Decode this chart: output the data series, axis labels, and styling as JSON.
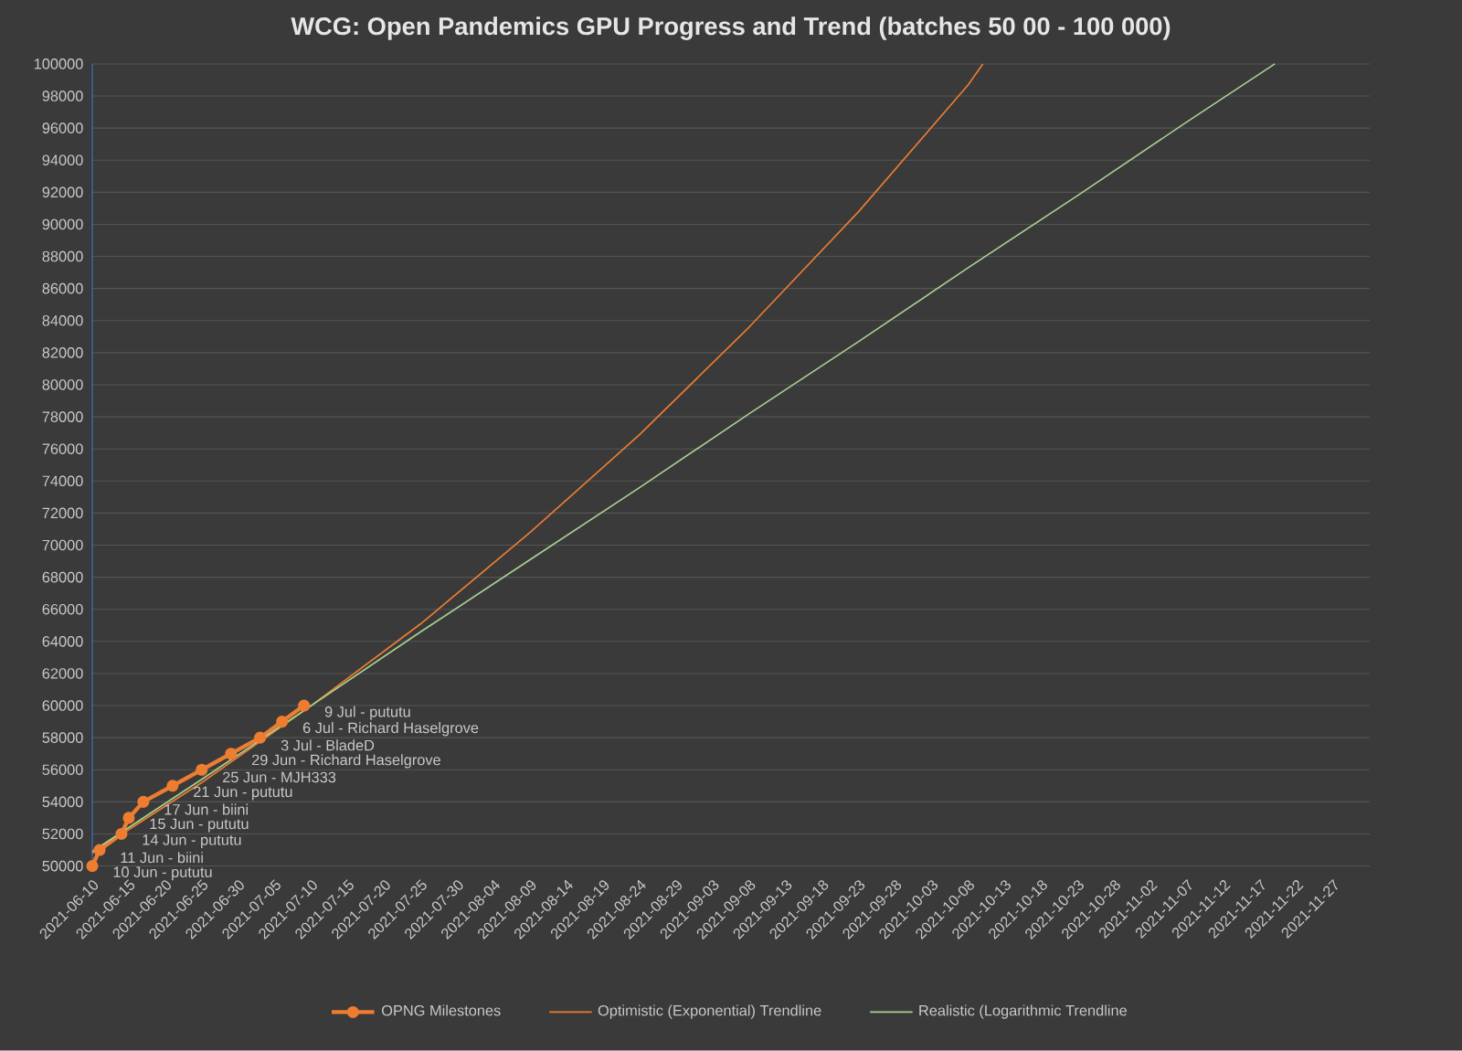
{
  "chart_data": {
    "type": "line",
    "title": "WCG: Open Pandemics GPU Progress and Trend (batches 50 00 - 100 000)",
    "xlim": [
      "2021-06-10",
      "2021-12-02"
    ],
    "xticks": [
      "2021-06-10",
      "2021-06-15",
      "2021-06-20",
      "2021-06-25",
      "2021-06-30",
      "2021-07-05",
      "2021-07-10",
      "2021-07-15",
      "2021-07-20",
      "2021-07-25",
      "2021-07-30",
      "2021-08-04",
      "2021-08-09",
      "2021-08-14",
      "2021-08-19",
      "2021-08-24",
      "2021-08-29",
      "2021-09-03",
      "2021-09-08",
      "2021-09-13",
      "2021-09-18",
      "2021-09-23",
      "2021-09-28",
      "2021-10-03",
      "2021-10-08",
      "2021-10-13",
      "2021-10-18",
      "2021-10-23",
      "2021-10-28",
      "2021-11-02",
      "2021-11-07",
      "2021-11-12",
      "2021-11-17",
      "2021-11-22",
      "2021-11-27"
    ],
    "ylim": [
      50000,
      100000
    ],
    "yticks": [
      50000,
      52000,
      54000,
      56000,
      58000,
      60000,
      62000,
      64000,
      66000,
      68000,
      70000,
      72000,
      74000,
      76000,
      78000,
      80000,
      82000,
      84000,
      86000,
      88000,
      90000,
      92000,
      94000,
      96000,
      98000,
      100000
    ],
    "grid": "y",
    "legend": "bottom",
    "series": [
      {
        "name": "OPNG Milestones",
        "color": "#ed7d31",
        "marker": "circle",
        "x": [
          "2021-06-10",
          "2021-06-11",
          "2021-06-14",
          "2021-06-15",
          "2021-06-17",
          "2021-06-21",
          "2021-06-25",
          "2021-06-29",
          "2021-07-03",
          "2021-07-06",
          "2021-07-09"
        ],
        "values": [
          50000,
          51000,
          52000,
          53000,
          54000,
          55000,
          56000,
          57000,
          58000,
          59000,
          60000
        ]
      },
      {
        "name": "Optimistic (Exponential) Trendline",
        "color": "#ed7d31",
        "x": [
          "2021-06-10",
          "2021-06-25",
          "2021-07-10",
          "2021-07-25",
          "2021-08-09",
          "2021-08-24",
          "2021-09-08",
          "2021-09-23",
          "2021-10-08",
          "2021-10-10"
        ],
        "values": [
          50800,
          55200,
          60000,
          65100,
          70800,
          76900,
          83600,
          90800,
          98700,
          100000
        ]
      },
      {
        "name": "Realistic (Logarithmic Trendline",
        "color": "#a9d18e",
        "x": [
          "2021-06-10",
          "2021-06-25",
          "2021-07-10",
          "2021-07-25",
          "2021-08-09",
          "2021-08-24",
          "2021-09-08",
          "2021-09-23",
          "2021-10-08",
          "2021-10-23",
          "2021-11-07",
          "2021-11-19"
        ],
        "values": [
          50900,
          55400,
          60000,
          64600,
          69100,
          73600,
          78200,
          82700,
          87300,
          91800,
          96400,
          100000
        ]
      }
    ],
    "annotations": [
      {
        "text": "10 Jun - pututu",
        "x": "2021-06-10",
        "y": 50000
      },
      {
        "text": "11 Jun - biini",
        "x": "2021-06-11",
        "y": 51000
      },
      {
        "text": "14 Jun - pututu",
        "x": "2021-06-14",
        "y": 52000
      },
      {
        "text": "15 Jun - pututu",
        "x": "2021-06-15",
        "y": 53000
      },
      {
        "text": "17 Jun - biini",
        "x": "2021-06-17",
        "y": 54000
      },
      {
        "text": "21 Jun - pututu",
        "x": "2021-06-21",
        "y": 55000
      },
      {
        "text": "25 Jun - MJH333",
        "x": "2021-06-25",
        "y": 56000
      },
      {
        "text": "29 Jun - Richard Haselgrove",
        "x": "2021-06-29",
        "y": 57000
      },
      {
        "text": "3 Jul - BladeD",
        "x": "2021-07-03",
        "y": 58000
      },
      {
        "text": "6 Jul - Richard Haselgrove",
        "x": "2021-07-06",
        "y": 59000
      },
      {
        "text": "9 Jul - pututu",
        "x": "2021-07-09",
        "y": 60000
      }
    ]
  }
}
